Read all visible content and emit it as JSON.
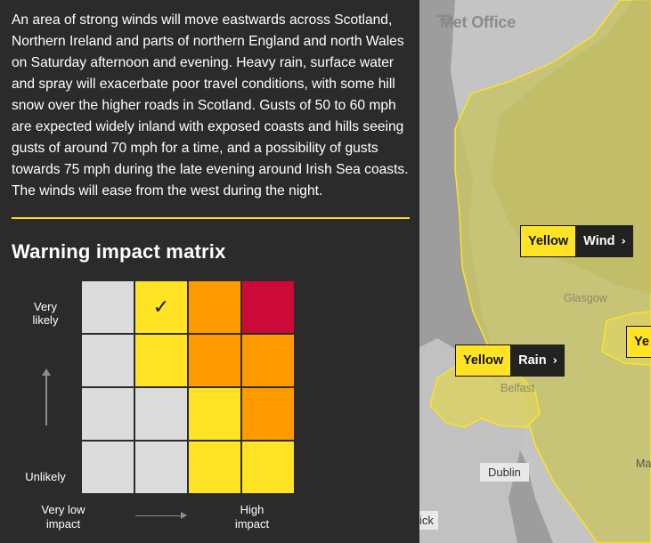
{
  "description": "An area of strong winds will move eastwards across Scotland, Northern Ireland and parts of northern England and north Wales on Saturday afternoon and evening. Heavy rain, surface water and spray will exacerbate poor travel conditions, with some hill snow over the higher roads in Scotland. Gusts of 50 to 60 mph are expected widely inland with exposed coasts and hills seeing gusts of around 70 mph for a time, and a possibility of gusts towards 75 mph during the late evening around Irish Sea coasts. The winds will ease from the west during the night.",
  "matrix": {
    "title": "Warning impact matrix",
    "likelihood_high": "Very likely",
    "likelihood_low": "Unlikely",
    "impact_low": "Very low impact",
    "impact_high": "High impact",
    "check_mark": "✓",
    "rows": [
      [
        "grey",
        "yellow",
        "orange",
        "red"
      ],
      [
        "grey",
        "yellow",
        "orange",
        "orange"
      ],
      [
        "grey",
        "grey",
        "yellow",
        "orange"
      ],
      [
        "grey",
        "grey",
        "yellow",
        "yellow"
      ]
    ],
    "selected": {
      "row": 0,
      "col": 1
    }
  },
  "map": {
    "logo": "Met Office",
    "places": {
      "glasgow": "Glasgow",
      "belfast": "Belfast",
      "dublin": "Dublin",
      "partial_left": "ick",
      "partial_right": "Ma"
    },
    "warnings": {
      "wind": {
        "level": "Yellow",
        "type": "Wind"
      },
      "rain": {
        "level": "Yellow",
        "type": "Rain"
      },
      "partial": {
        "level": "Ye"
      }
    }
  },
  "colors": {
    "yellow": "#ffe324",
    "orange": "#ff9b00",
    "red": "#cc0a3a",
    "grey": "#dcdcdc",
    "accent": "#ffde21"
  }
}
